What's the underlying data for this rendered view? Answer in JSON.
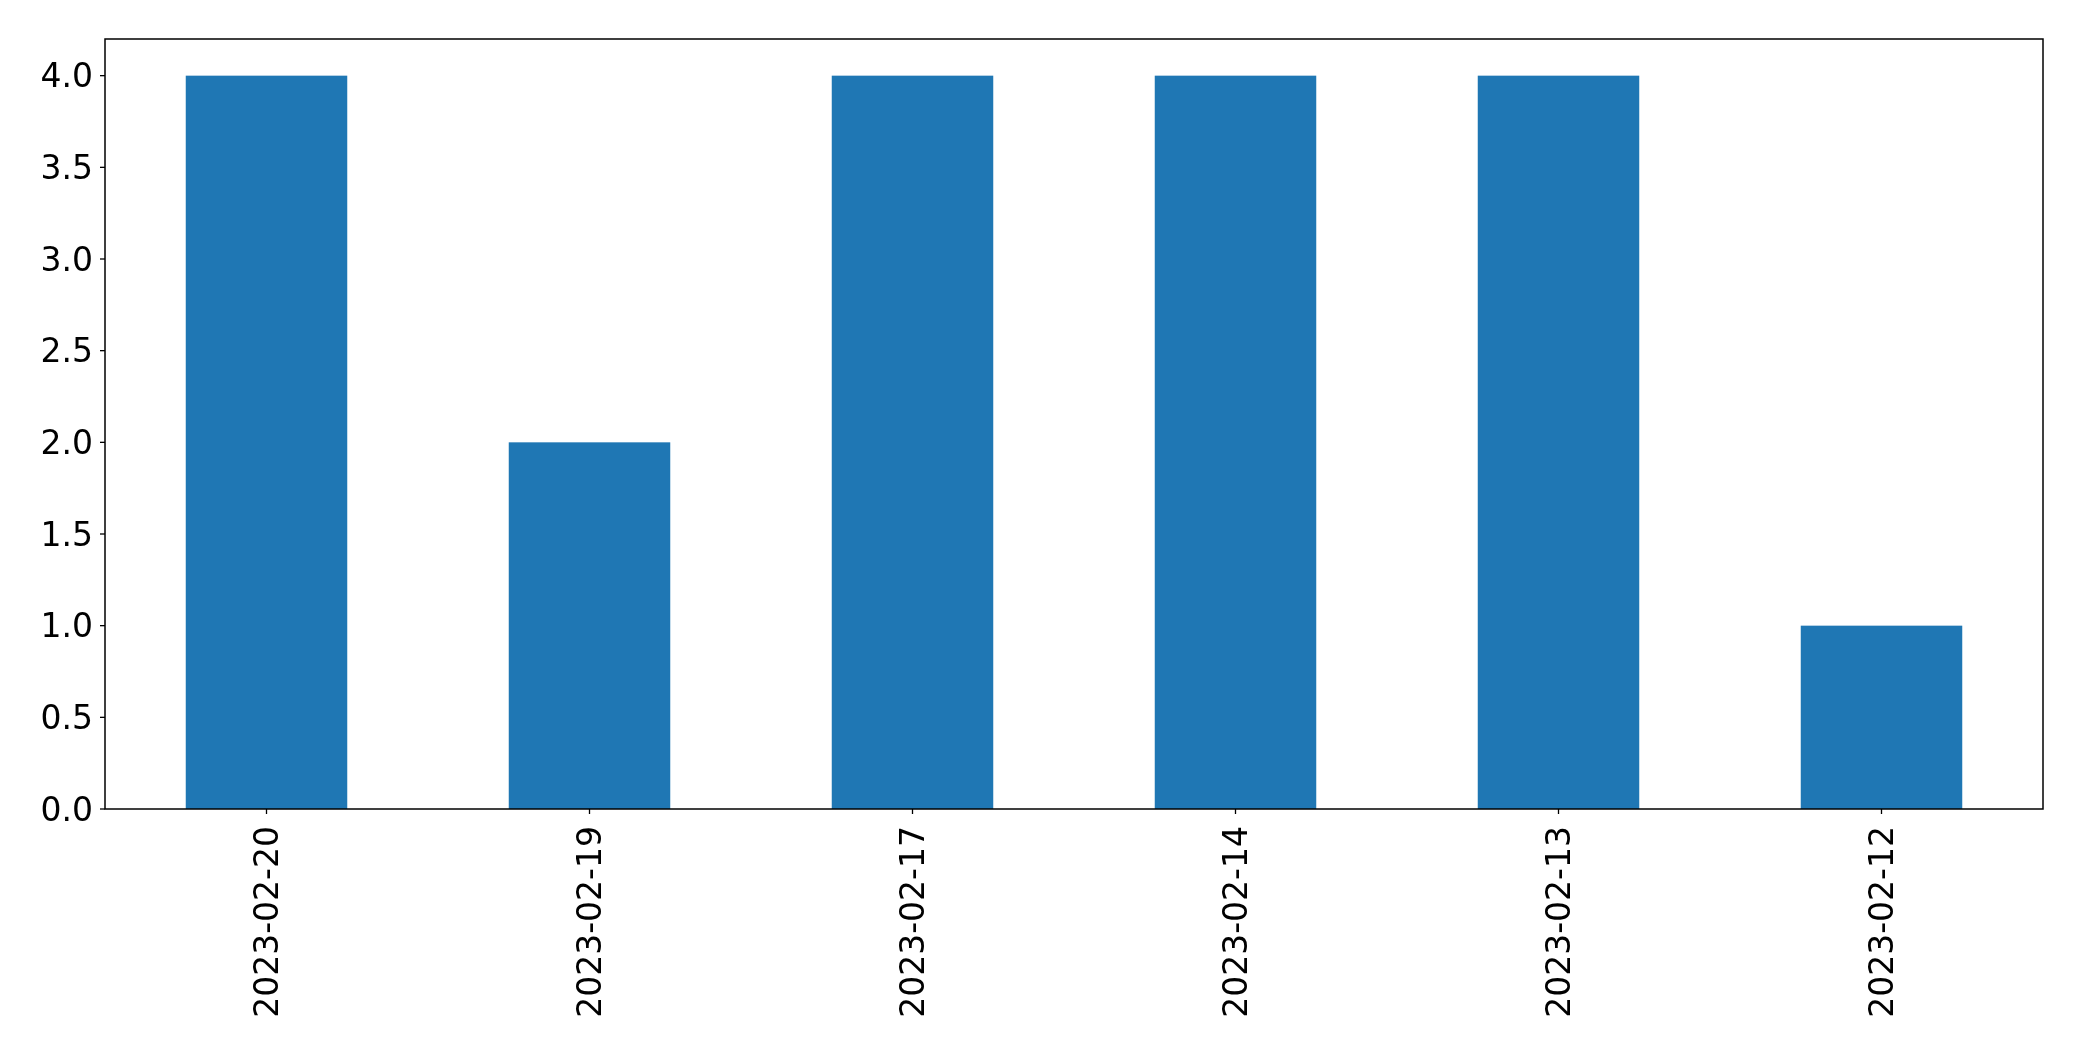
{
  "chart_data": {
    "type": "bar",
    "categories": [
      "2023-02-20",
      "2023-02-19",
      "2023-02-17",
      "2023-02-14",
      "2023-02-13",
      "2023-02-12"
    ],
    "values": [
      4,
      2,
      4,
      4,
      4,
      1
    ],
    "color": "#1f77b4",
    "ylim": [
      0,
      4.2
    ],
    "yticks": [
      {
        "value": 0,
        "label": "0.0"
      },
      0.5,
      {
        "value": 1,
        "label": "1.0"
      },
      1.5,
      {
        "value": 2,
        "label": "2.0"
      },
      2.5,
      {
        "value": 3,
        "label": "3.0"
      },
      3.5,
      {
        "value": 4,
        "label": "4.0"
      }
    ]
  }
}
